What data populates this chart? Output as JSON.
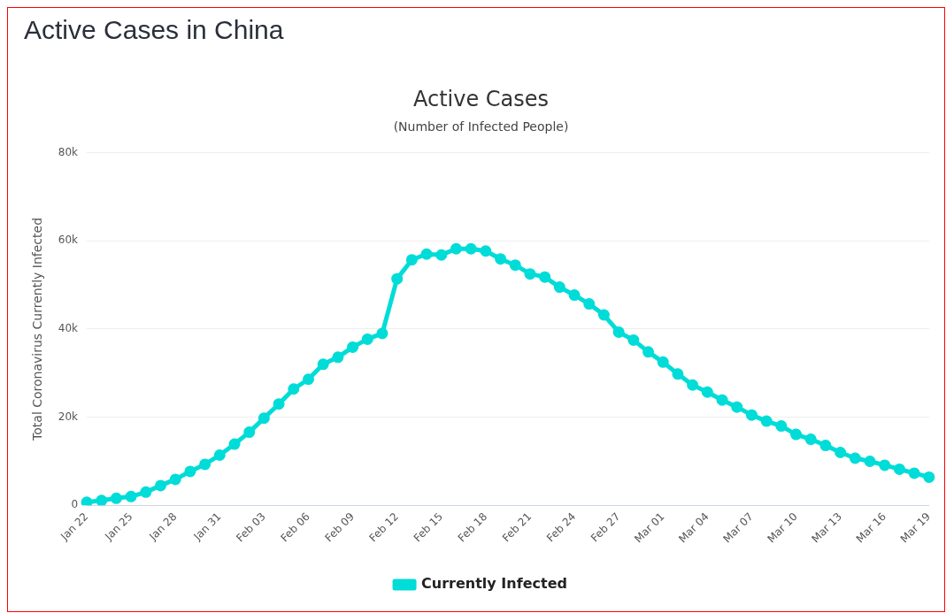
{
  "chart_data": {
    "type": "line",
    "title": "Active Cases",
    "subtitle": "(Number of Infected People)",
    "ylabel": "Total Coronavirus Currently Infected",
    "annotations": [
      "Active Cases in China"
    ],
    "categories": [
      "Jan 22",
      null,
      null,
      "Jan 25",
      null,
      null,
      "Jan 28",
      null,
      null,
      "Jan 31",
      null,
      null,
      "Feb 03",
      null,
      null,
      "Feb 06",
      null,
      null,
      "Feb 09",
      null,
      null,
      "Feb 12",
      null,
      null,
      "Feb 15",
      null,
      null,
      "Feb 18",
      null,
      null,
      "Feb 21",
      null,
      null,
      "Feb 24",
      null,
      null,
      "Feb 27",
      null,
      null,
      "Mar 01",
      null,
      null,
      "Mar 04",
      null,
      null,
      "Mar 07",
      null,
      null,
      "Mar 10",
      null,
      null,
      "Mar 13",
      null,
      null,
      "Mar 16",
      null,
      null,
      "Mar 19"
    ],
    "series": [
      {
        "name": "Currently Infected",
        "color": "#00dcd7",
        "values": [
          700,
          1100,
          1600,
          2000,
          3000,
          4500,
          5900,
          7700,
          9300,
          11400,
          13900,
          16600,
          19800,
          23000,
          26400,
          28600,
          32000,
          33600,
          35900,
          37700,
          39000,
          51400,
          55700,
          57000,
          56800,
          58200,
          58200,
          57700,
          55900,
          54500,
          52500,
          51800,
          49500,
          47700,
          45700,
          43200,
          39300,
          37500,
          34800,
          32500,
          29800,
          27300,
          25700,
          23900,
          22300,
          20500,
          19100,
          18000,
          16100,
          15000,
          13600,
          12000,
          10700,
          10000,
          9100,
          8200,
          7300,
          6400
        ]
      }
    ],
    "ylim": [
      0,
      80000
    ],
    "yticks": [
      0,
      {
        "value": 20000,
        "label": "20k"
      },
      {
        "value": 40000,
        "label": "40k"
      },
      {
        "value": 60000,
        "label": "60k"
      },
      {
        "value": 80000,
        "label": "80k"
      }
    ],
    "grid": "y",
    "legend": "bottom",
    "marker": "circle",
    "line_style": "solid"
  }
}
